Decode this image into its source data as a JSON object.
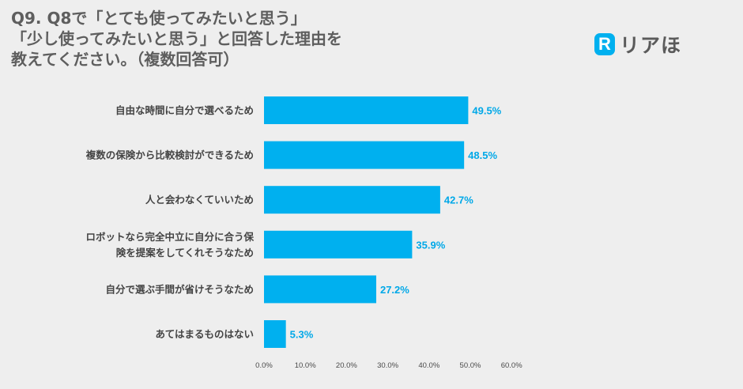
{
  "question": {
    "lines": [
      "Q9. Q8で「とても使ってみたいと思う」",
      "「少し使ってみたいと思う」と回答した理由を",
      "教えてください。（複数回答可）"
    ]
  },
  "logo": {
    "mark": "R",
    "text": "リアほ",
    "color": "#00b0ef"
  },
  "chart_data": {
    "type": "bar",
    "orientation": "horizontal",
    "categories": [
      [
        "自由な時間に自分で選べるため"
      ],
      [
        "複数の保険から比較検討ができるため"
      ],
      [
        "人と会わなくていいため"
      ],
      [
        "ロボットなら完全中立に自分に合う保",
        "険を提案をしてくれそうなため"
      ],
      [
        "自分で選ぶ手間が省けそうなため"
      ],
      [
        "あてはまるものはない"
      ]
    ],
    "values": [
      49.5,
      48.5,
      42.7,
      35.9,
      27.2,
      5.3
    ],
    "value_labels": [
      "49.5%",
      "48.5%",
      "42.7%",
      "35.9%",
      "27.2%",
      "5.3%"
    ],
    "x_ticks": [
      "0.0%",
      "10.0%",
      "20.0%",
      "30.0%",
      "40.0%",
      "50.0%",
      "60.0%"
    ],
    "xlim": [
      0,
      60
    ],
    "grid": false,
    "bar_color": "#00b0ef",
    "label_color": "#00a8e8"
  }
}
